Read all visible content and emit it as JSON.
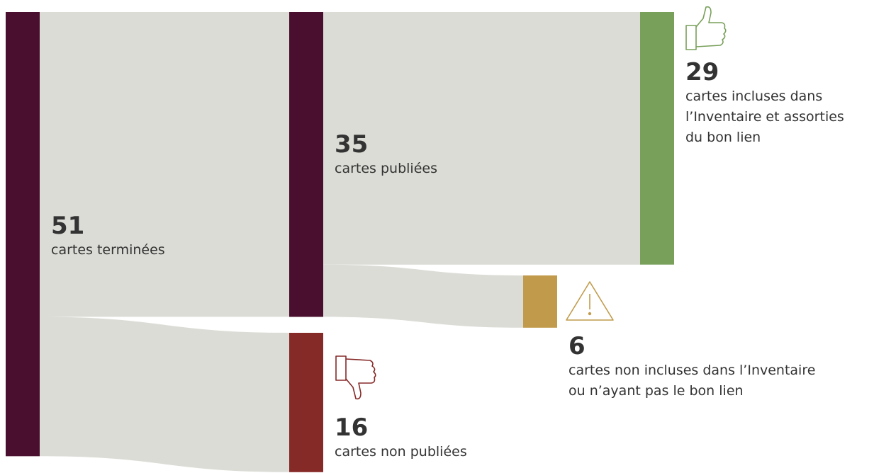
{
  "chart_data": {
    "type": "sankey",
    "nodes": [
      {
        "value": 51,
        "label": [
          "cartes terminées"
        ],
        "color": "#4a0e2e"
      },
      {
        "value": 35,
        "label": [
          "cartes publiées"
        ],
        "color": "#4a0e2e"
      },
      {
        "value": 16,
        "label": [
          "cartes non publiées"
        ],
        "color": "#862a28"
      },
      {
        "value": 29,
        "label": [
          "cartes incluses dans",
          "l’Inventaire et assorties",
          "du bon lien"
        ],
        "color": "#78a05a"
      },
      {
        "value": 6,
        "label": [
          "cartes non incluses dans l’Inventaire",
          "ou n’ayant pas le bon lien"
        ],
        "color": "#c19b4b"
      }
    ],
    "links": [
      {
        "source": 0,
        "target": 1,
        "value": 35
      },
      {
        "source": 0,
        "target": 2,
        "value": 16
      },
      {
        "source": 1,
        "target": 3,
        "value": 29
      },
      {
        "source": 1,
        "target": 4,
        "value": 6
      }
    ],
    "link_color": "#dcdcd7"
  }
}
